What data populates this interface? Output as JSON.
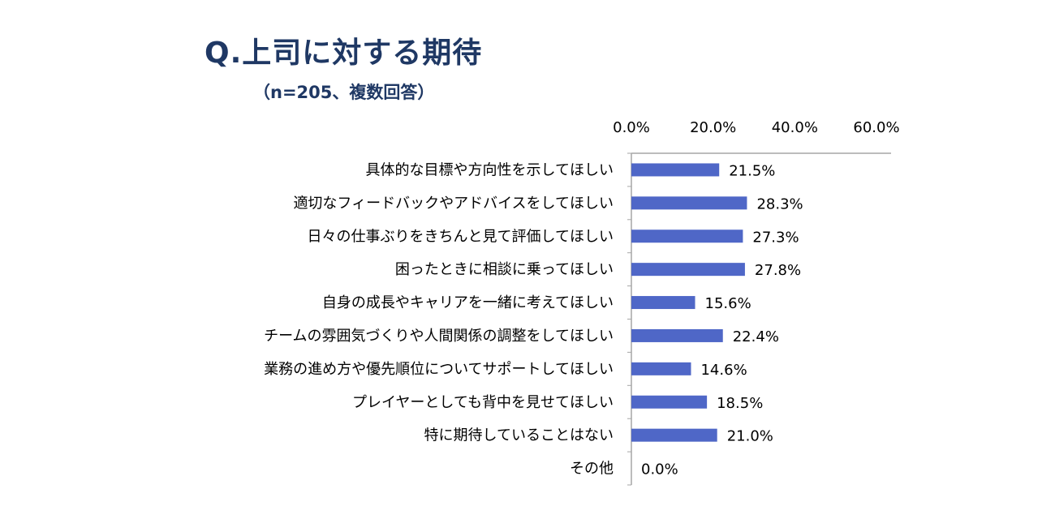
{
  "header": {
    "title": "Q.上司に対する期待",
    "subtitle": "（n=205、複数回答）"
  },
  "chart_data": {
    "type": "bar",
    "orientation": "horizontal",
    "title": "Q.上司に対する期待",
    "subtitle": "（n=205、複数回答）",
    "xlim": [
      0,
      60
    ],
    "x_ticks": [
      "0.0%",
      "20.0%",
      "40.0%",
      "60.0%"
    ],
    "x_tick_values": [
      0,
      20,
      40,
      60
    ],
    "x_axis_position": "top",
    "grid": false,
    "legend": "none",
    "bar_color": "#4f67c7",
    "categories": [
      "具体的な目標や方向性を示してほしい",
      "適切なフィードバックやアドバイスをしてほしい",
      "日々の仕事ぶりをきちんと見て評価してほしい",
      "困ったときに相談に乗ってほしい",
      "自身の成長やキャリアを一緒に考えてほしい",
      "チームの雰囲気づくりや人間関係の調整をしてほしい",
      "業務の進め方や優先順位についてサポートしてほしい",
      "プレイヤーとしても背中を見せてほしい",
      "特に期待していることはない",
      "その他"
    ],
    "values": [
      21.5,
      28.3,
      27.3,
      27.8,
      15.6,
      22.4,
      14.6,
      18.5,
      21.0,
      0.0
    ],
    "value_labels": [
      "21.5%",
      "28.3%",
      "27.3%",
      "27.8%",
      "15.6%",
      "22.4%",
      "14.6%",
      "18.5%",
      "21.0%",
      "0.0%"
    ]
  }
}
